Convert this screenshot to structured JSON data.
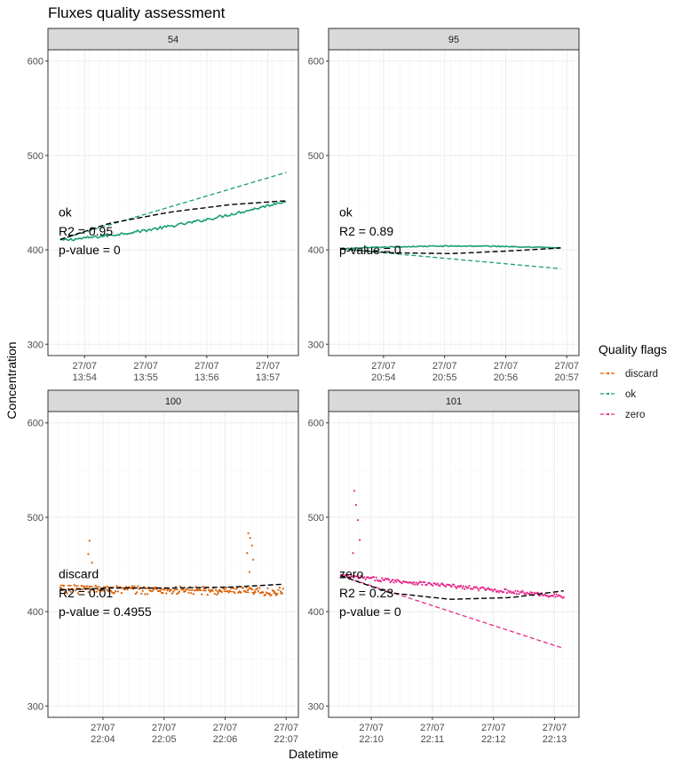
{
  "title": "Fluxes quality assessment",
  "xlabel": "Datetime",
  "ylabel": "Concentration",
  "legend": {
    "title": "Quality flags",
    "position": "right",
    "items": [
      {
        "label": "discard",
        "color": "#d95f02"
      },
      {
        "label": "ok",
        "color": "#1b9e77"
      },
      {
        "label": "zero",
        "color": "#e7298a"
      }
    ]
  },
  "y_ticks": [
    300,
    400,
    500,
    600
  ],
  "chart_data": {
    "type": "scatter",
    "facet_layout": "2x2",
    "ylim": [
      288,
      612
    ],
    "grid": true,
    "panels": [
      {
        "id": "54",
        "flag": "ok",
        "color": "#1b9e77",
        "xlim_minutes": [
          0,
          4.1
        ],
        "x_ticks": [
          {
            "minute": 0.6,
            "line1": "27/07",
            "line2": "13:54"
          },
          {
            "minute": 1.6,
            "line1": "27/07",
            "line2": "13:55"
          },
          {
            "minute": 2.6,
            "line1": "27/07",
            "line2": "13:56"
          },
          {
            "minute": 3.6,
            "line1": "27/07",
            "line2": "13:57"
          }
        ],
        "annotation": {
          "flag_text": "ok",
          "r2_text": "R2 = 0.95",
          "p_text": "p-value = 0"
        },
        "points": {
          "start": 0.2,
          "end": 3.9,
          "n": 150,
          "kind": "line",
          "start_value": 410,
          "end_value": 452,
          "curve": -22,
          "noise": 1.5,
          "spikes": []
        },
        "linear_fit": {
          "x": [
            0.2,
            3.9
          ],
          "y": [
            411,
            482
          ]
        },
        "model_fit": {
          "x": [
            0.2,
            1.0,
            2.0,
            3.0,
            3.9
          ],
          "y": [
            411,
            428,
            440,
            448,
            452
          ]
        }
      },
      {
        "id": "95",
        "flag": "ok",
        "color": "#1b9e77",
        "xlim_minutes": [
          0,
          4.1
        ],
        "x_ticks": [
          {
            "minute": 0.9,
            "line1": "27/07",
            "line2": "20:54"
          },
          {
            "minute": 1.9,
            "line1": "27/07",
            "line2": "20:55"
          },
          {
            "minute": 2.9,
            "line1": "27/07",
            "line2": "20:56"
          },
          {
            "minute": 3.9,
            "line1": "27/07",
            "line2": "20:57"
          }
        ],
        "annotation": {
          "flag_text": "ok",
          "r2_text": "R2 = 0.89",
          "p_text": "p-value = 0"
        },
        "points": {
          "start": 0.2,
          "end": 3.8,
          "n": 150,
          "kind": "line",
          "start_value": 401,
          "end_value": 402,
          "curve": 10,
          "noise": 0.6,
          "spikes": []
        },
        "linear_fit": {
          "x": [
            0.2,
            3.8
          ],
          "y": [
            401,
            380
          ]
        },
        "model_fit": {
          "x": [
            0.2,
            1.0,
            2.0,
            3.0,
            3.8
          ],
          "y": [
            401,
            397,
            396,
            399,
            402
          ]
        }
      },
      {
        "id": "100",
        "flag": "discard",
        "color": "#d95f02",
        "xlim_minutes": [
          0,
          4.1
        ],
        "x_ticks": [
          {
            "minute": 0.9,
            "line1": "27/07",
            "line2": "22:04"
          },
          {
            "minute": 1.9,
            "line1": "27/07",
            "line2": "22:05"
          },
          {
            "minute": 2.9,
            "line1": "27/07",
            "line2": "22:06"
          },
          {
            "minute": 3.9,
            "line1": "27/07",
            "line2": "22:07"
          }
        ],
        "annotation": {
          "flag_text": "discard",
          "r2_text": "R2 = 0.01",
          "p_text": "p-value = 0.4955"
        },
        "points": {
          "start": 0.2,
          "end": 3.85,
          "n": 190,
          "kind": "dots",
          "start_value": 424,
          "end_value": 421,
          "curve": 0,
          "noise": 4.5,
          "spikes": [
            {
              "minute": 0.68,
              "value": 475
            },
            {
              "minute": 0.66,
              "value": 461
            },
            {
              "minute": 0.72,
              "value": 452
            },
            {
              "minute": 3.28,
              "value": 483
            },
            {
              "minute": 3.31,
              "value": 478
            },
            {
              "minute": 3.34,
              "value": 470
            },
            {
              "minute": 3.26,
              "value": 462
            },
            {
              "minute": 3.36,
              "value": 455
            },
            {
              "minute": 3.3,
              "value": 442
            }
          ]
        },
        "linear_fit": {
          "x": [
            0.2,
            3.85
          ],
          "y": [
            428,
            419
          ]
        },
        "model_fit": {
          "x": [
            0.2,
            1.0,
            2.0,
            3.0,
            3.85
          ],
          "y": [
            423,
            425,
            425,
            426,
            429
          ]
        }
      },
      {
        "id": "101",
        "flag": "zero",
        "color": "#e7298a",
        "xlim_minutes": [
          0,
          4.1
        ],
        "x_ticks": [
          {
            "minute": 0.7,
            "line1": "27/07",
            "line2": "22:10"
          },
          {
            "minute": 1.7,
            "line1": "27/07",
            "line2": "22:11"
          },
          {
            "minute": 2.7,
            "line1": "27/07",
            "line2": "22:12"
          },
          {
            "minute": 3.7,
            "line1": "27/07",
            "line2": "22:13"
          }
        ],
        "annotation": {
          "flag_text": "zero",
          "r2_text": "R2 = 0.23",
          "p_text": "p-value = 0"
        },
        "points": {
          "start": 0.2,
          "end": 3.85,
          "n": 190,
          "kind": "dots",
          "start_value": 438,
          "end_value": 416,
          "curve": 0,
          "noise": 2.0,
          "spikes": [
            {
              "minute": 0.42,
              "value": 528
            },
            {
              "minute": 0.45,
              "value": 513
            },
            {
              "minute": 0.48,
              "value": 497
            },
            {
              "minute": 0.51,
              "value": 476
            },
            {
              "minute": 0.4,
              "value": 462
            }
          ]
        },
        "linear_fit": {
          "x": [
            0.2,
            3.85
          ],
          "y": [
            438,
            361
          ]
        },
        "model_fit": {
          "x": [
            0.2,
            1.0,
            2.0,
            3.0,
            3.85
          ],
          "y": [
            438,
            420,
            413,
            415,
            422
          ]
        }
      }
    ]
  }
}
